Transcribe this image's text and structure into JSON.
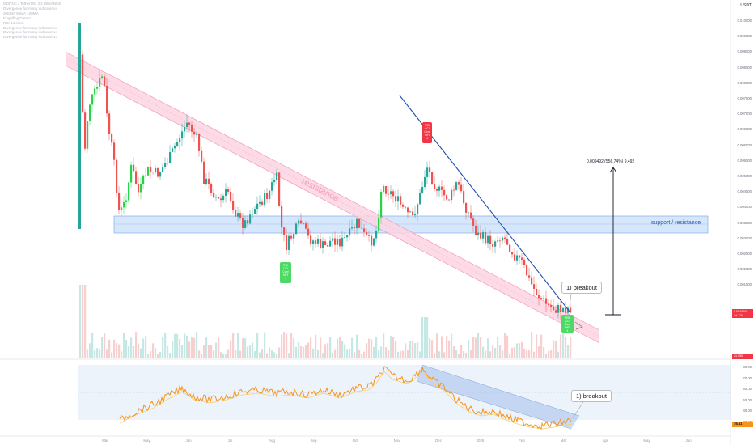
{
  "header": {
    "title": "MDRNC / TetherUS, 3D, BINANCE",
    "legend_lines": [
      "Divergence for many indicator v4",
      "20EMA 50MA 100MA",
      "Engulfing Detect",
      "RSI 14 close",
      "Divergence for many indicator v4",
      "Divergence for many indicator v4",
      "Divergence for many indicator v4"
    ],
    "currency": "USDT"
  },
  "price_axis": {
    "ticks": [
      "0.010000",
      "0.009500",
      "0.009000",
      "0.008500",
      "0.008000",
      "0.007500",
      "0.007000",
      "0.006500",
      "0.006000",
      "0.005500",
      "0.005000",
      "0.004500",
      "0.004000",
      "0.003500",
      "0.003000",
      "0.002500",
      "0.002000",
      "0.001500"
    ],
    "current_price": "0.001693",
    "current_time": "1d 12h",
    "volume_tag": "21.955"
  },
  "rsi_axis": {
    "ticks": [
      "80.00",
      "70.00",
      "60.00",
      "50.00",
      "40.00",
      "30.00"
    ],
    "current_value": "76.51"
  },
  "time_axis": {
    "labels": [
      "Mar",
      "May",
      "Jun",
      "Jul",
      "Aug",
      "Sep",
      "Oct",
      "Nov",
      "Dec",
      "2025",
      "Feb",
      "Mar",
      "Apr",
      "May",
      "Jun"
    ]
  },
  "annotations": {
    "resistance_label": "resistance",
    "support_label": "support / resistance",
    "breakout_price": "1) breakout",
    "breakout_rsi": "1) breakout",
    "measure_label": "0.009492 (556.74%) 9,492"
  },
  "signals": {
    "sell": "RSI\nCCI\nConf\nMFI\n4",
    "buy_1": "RSI\nCCI\nConf\nMFI\n4",
    "buy_2": "RSI\nCCI\nConf\nMFI\n4"
  },
  "colors": {
    "up": "#26a69a",
    "up_bright": "#2bd14a",
    "down": "#ef5350",
    "resistance_fill": "#f8bbd0",
    "resistance_line": "#f48fb1",
    "support_fill": "#d6e6fb",
    "support_line": "#5b9be6",
    "trendline": "#1e4fb0",
    "rsi_line": "#f7931a",
    "rsi_ma": "#f3d26b",
    "price_tag": "#f23645",
    "signal_sell": "#f23645",
    "signal_buy": "#4cd964"
  }
}
